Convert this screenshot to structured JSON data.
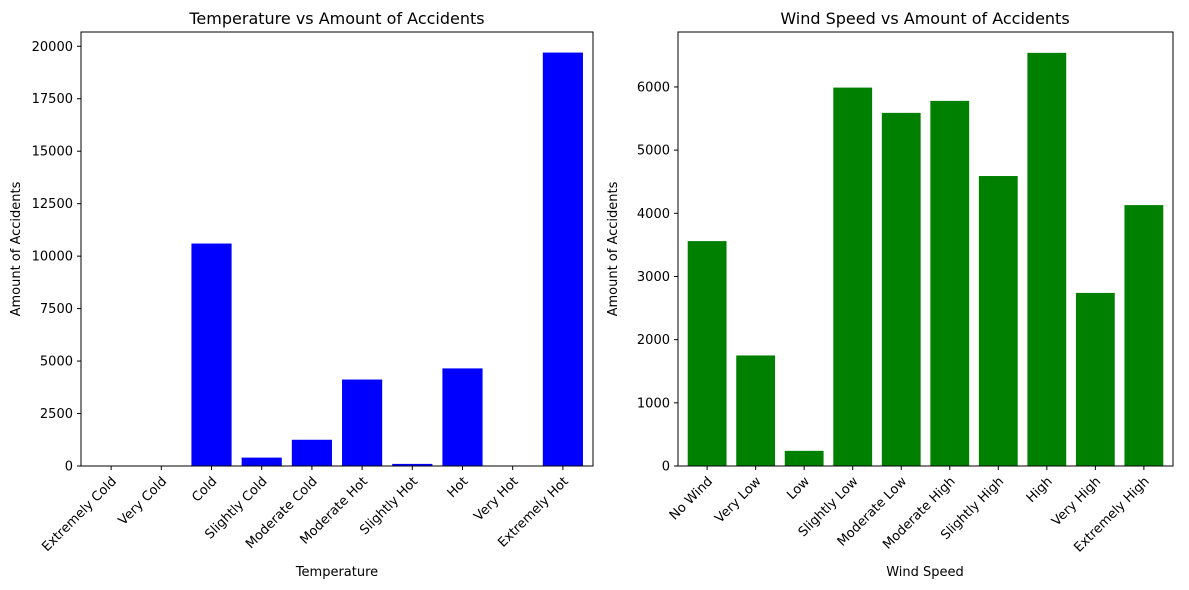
{
  "chart_data": [
    {
      "type": "bar",
      "title": "Temperature vs Amount of Accidents",
      "xlabel": "Temperature",
      "ylabel": "Amount of Accidents",
      "categories": [
        "Extremely Cold",
        "Very Cold",
        "Cold",
        "Slightly Cold",
        "Moderate Cold",
        "Moderate Hot",
        "Slightly Hot",
        "Hot",
        "Very Hot",
        "Extremely Hot"
      ],
      "values": [
        0,
        0,
        10600,
        400,
        1250,
        4120,
        100,
        4650,
        0,
        19700
      ],
      "yticks": [
        0,
        2500,
        5000,
        7500,
        10000,
        12500,
        15000,
        17500,
        20000
      ],
      "ylim": [
        0,
        20680
      ],
      "color": "#0000ff",
      "grid": false
    },
    {
      "type": "bar",
      "title": "Wind Speed vs Amount of Accidents",
      "xlabel": "Wind Speed",
      "ylabel": "Amount of Accidents",
      "categories": [
        "No Wind",
        "Very Low",
        "Low",
        "Slightly Low",
        "Moderate Low",
        "Moderate High",
        "Slightly High",
        "High",
        "Very High",
        "Extremely High"
      ],
      "values": [
        3560,
        1750,
        240,
        5990,
        5590,
        5780,
        4590,
        6540,
        2740,
        4130
      ],
      "yticks": [
        0,
        1000,
        2000,
        3000,
        4000,
        5000,
        6000
      ],
      "ylim": [
        0,
        6870
      ],
      "color": "#008000",
      "grid": false
    }
  ]
}
